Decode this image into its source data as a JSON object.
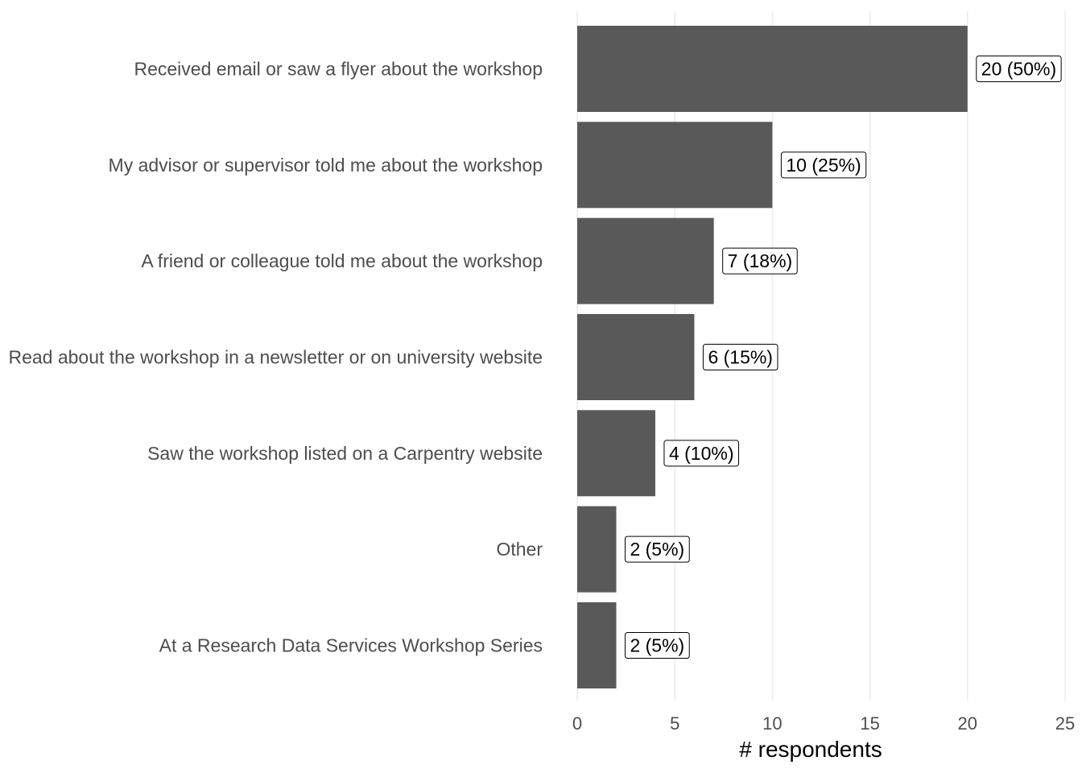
{
  "chart_data": {
    "type": "bar",
    "orientation": "horizontal",
    "categories": [
      "Received email or saw a flyer about the workshop",
      "My advisor or supervisor told me about the workshop",
      "A friend or colleague told me about the workshop",
      "Read about the workshop in a newsletter or on university website",
      "Saw the workshop listed on a Carpentry website",
      "Other",
      "At a Research Data Services Workshop Series"
    ],
    "values": [
      20,
      10,
      7,
      6,
      4,
      2,
      2
    ],
    "data_labels": [
      "20 (50%)",
      "10 (25%)",
      "7 (18%)",
      "6 (15%)",
      "4 (10%)",
      "2 (5%)",
      "2 (5%)"
    ],
    "xlabel": "# respondents",
    "ylabel": "",
    "xlim": [
      0,
      25
    ],
    "xticks": [
      0,
      5,
      10,
      15,
      20,
      25
    ],
    "grid": "vertical",
    "legend": "none",
    "bar_color": "#595959",
    "grid_color": "#ebebeb"
  }
}
